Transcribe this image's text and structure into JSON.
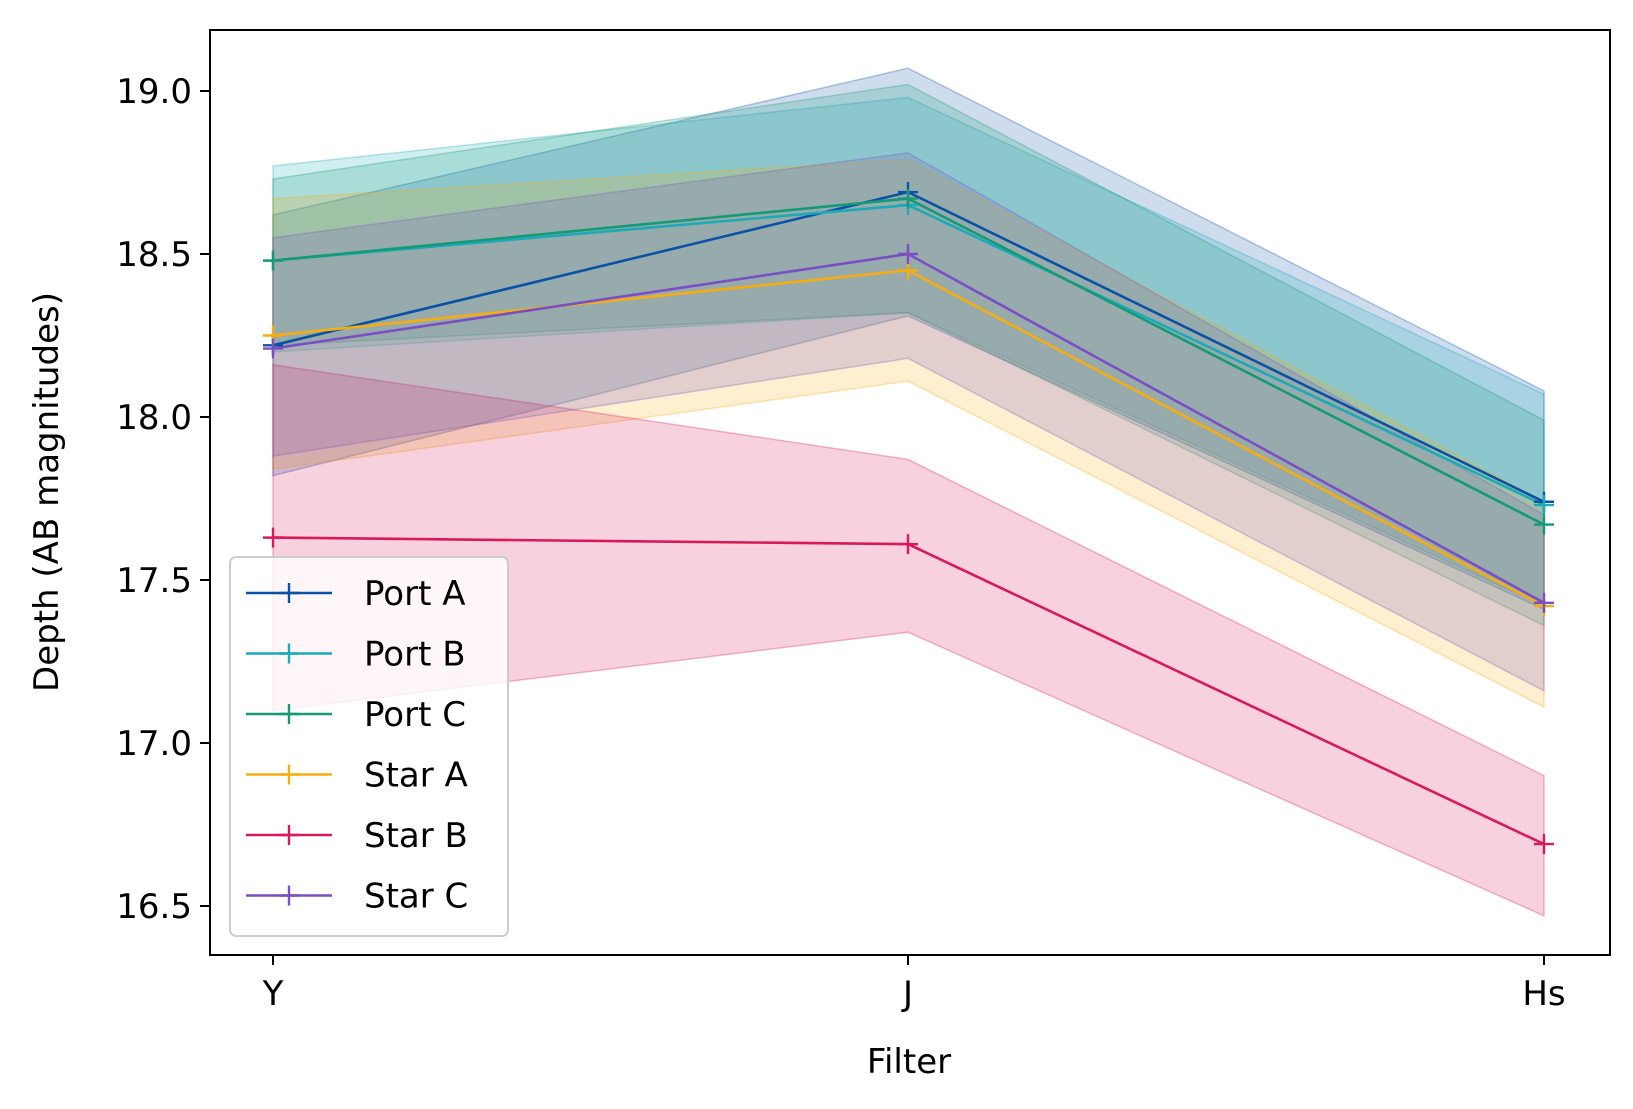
{
  "chart_data": {
    "type": "line",
    "title": "",
    "xlabel": "Filter",
    "ylabel": "Depth (AB magnitudes)",
    "categories": [
      "Y",
      "J",
      "Hs"
    ],
    "ylim": [
      16.35,
      19.2
    ],
    "yticks": [
      16.5,
      17.0,
      17.5,
      18.0,
      18.5,
      19.0
    ],
    "ytick_labels": [
      "16.5",
      "17.0",
      "17.5",
      "18.0",
      "18.5",
      "19.0"
    ],
    "grid": false,
    "legend_position": "lower-left",
    "marker": "+",
    "series": [
      {
        "name": "Port A",
        "color": "#0a52a6",
        "values": [
          18.22,
          18.69,
          17.74
        ],
        "lower": [
          17.82,
          18.31,
          17.41
        ],
        "upper": [
          18.62,
          19.07,
          18.08
        ]
      },
      {
        "name": "Port B",
        "color": "#1aaab8",
        "values": [
          18.48,
          18.65,
          17.73
        ],
        "lower": [
          18.2,
          18.32,
          17.42
        ],
        "upper": [
          18.77,
          18.98,
          18.07
        ]
      },
      {
        "name": "Port C",
        "color": "#149a76",
        "values": [
          18.48,
          18.67,
          17.67
        ],
        "lower": [
          18.22,
          18.32,
          17.36
        ],
        "upper": [
          18.73,
          19.02,
          17.99
        ]
      },
      {
        "name": "Star A",
        "color": "#f6ad12",
        "values": [
          18.25,
          18.45,
          17.42
        ],
        "lower": [
          17.84,
          18.11,
          17.11
        ],
        "upper": [
          18.67,
          18.79,
          17.74
        ]
      },
      {
        "name": "Star B",
        "color": "#d81a5a",
        "values": [
          17.63,
          17.61,
          16.69
        ],
        "lower": [
          17.1,
          17.34,
          16.47
        ],
        "upper": [
          18.16,
          17.87,
          16.9
        ]
      },
      {
        "name": "Star C",
        "color": "#7a4fc4",
        "values": [
          18.21,
          18.5,
          17.43
        ],
        "lower": [
          17.88,
          18.18,
          17.16
        ],
        "upper": [
          18.55,
          18.81,
          17.7
        ]
      }
    ]
  }
}
